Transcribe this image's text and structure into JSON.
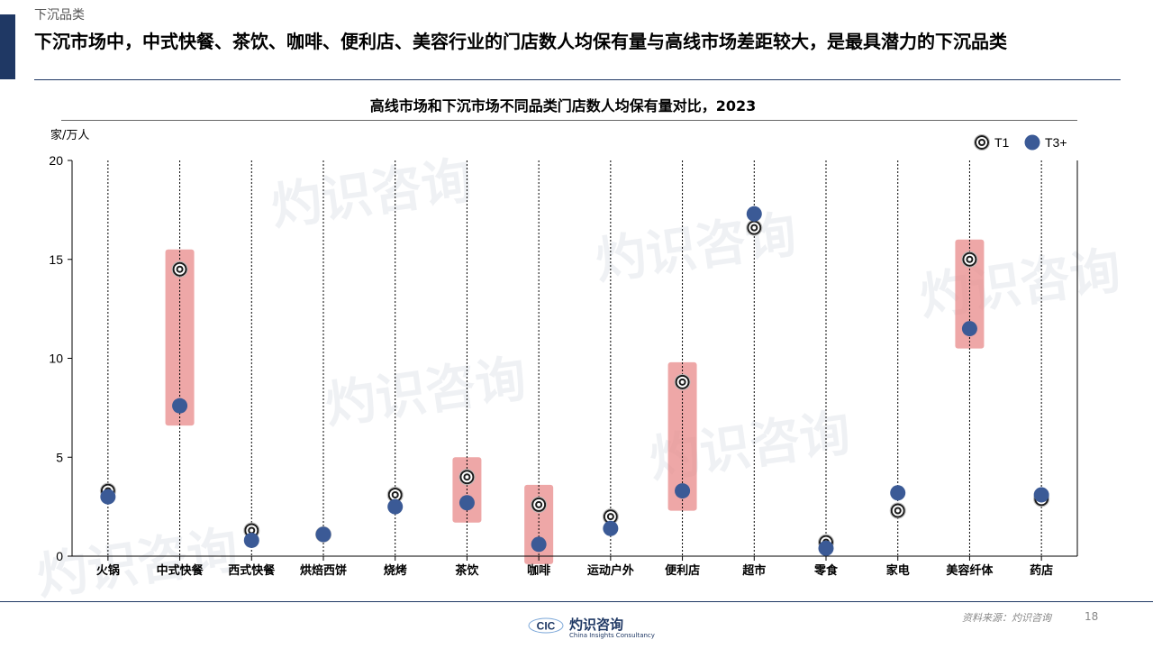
{
  "header": {
    "section": "下沉品类",
    "headline": "下沉市场中，中式快餐、茶饮、咖啡、便利店、美容行业的门店数人均保有量与高线市场差距较大，是最具潜力的下沉品类"
  },
  "footer": {
    "source": "资料来源：灼识咨询",
    "page": "18",
    "brand": "灼识咨询",
    "brand_en": "China Insights Consultancy",
    "brand_mark": "CIC"
  },
  "colors": {
    "accent": "#1f3864",
    "t3_marker": "#3b5a96",
    "highlight": "#e88a8a",
    "grid": "#000000"
  },
  "chart_data": {
    "type": "scatter",
    "title": "高线市场和下沉市场不同品类门店数人均保有量对比，2023",
    "ylabel": "家/万人",
    "ylim": [
      0,
      20
    ],
    "yticks": [
      0,
      5,
      10,
      15,
      20
    ],
    "legend_position": "top-right",
    "categories": [
      "火锅",
      "中式快餐",
      "西式快餐",
      "烘焙西饼",
      "烧烤",
      "茶饮",
      "咖啡",
      "运动户外",
      "便利店",
      "超市",
      "零食",
      "家电",
      "美容纤体",
      "药店"
    ],
    "series": [
      {
        "name": "T1",
        "marker": "t1-icon",
        "values": [
          3.3,
          14.5,
          1.3,
          1.1,
          3.1,
          4.0,
          2.6,
          2.0,
          8.8,
          16.6,
          0.7,
          2.3,
          15.0,
          2.9
        ]
      },
      {
        "name": "T3+",
        "marker": "t3-icon",
        "values": [
          3.0,
          7.6,
          0.8,
          1.1,
          2.5,
          2.7,
          0.6,
          1.4,
          3.3,
          17.3,
          0.4,
          3.2,
          11.5,
          3.1
        ]
      }
    ],
    "highlighted": [
      "中式快餐",
      "茶饮",
      "咖啡",
      "便利店",
      "美容纤体"
    ]
  }
}
